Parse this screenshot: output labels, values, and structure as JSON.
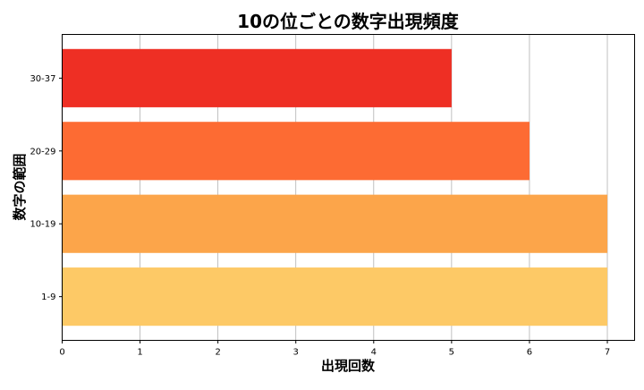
{
  "chart_data": {
    "type": "bar",
    "orientation": "horizontal",
    "title": "10の位ごとの数字出現頻度",
    "xlabel": "出現回数",
    "ylabel": "数字の範囲",
    "categories": [
      "1-9",
      "10-19",
      "20-29",
      "30-37"
    ],
    "values": [
      7,
      7,
      6,
      5
    ],
    "colors": [
      "#fdc966",
      "#fca54a",
      "#fd6b33",
      "#ee2f24"
    ],
    "xlim": [
      0,
      7.35
    ],
    "xticks": [
      0,
      1,
      2,
      3,
      4,
      5,
      6,
      7
    ],
    "grid": "x"
  }
}
